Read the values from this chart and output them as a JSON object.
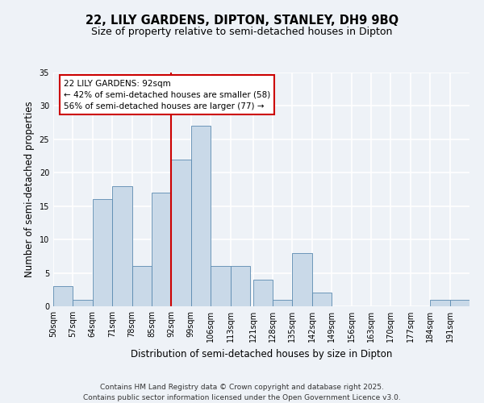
{
  "title_line1": "22, LILY GARDENS, DIPTON, STANLEY, DH9 9BQ",
  "title_line2": "Size of property relative to semi-detached houses in Dipton",
  "xlabel": "Distribution of semi-detached houses by size in Dipton",
  "ylabel": "Number of semi-detached properties",
  "footer": "Contains HM Land Registry data © Crown copyright and database right 2025.\nContains public sector information licensed under the Open Government Licence v3.0.",
  "bin_labels": [
    "50sqm",
    "57sqm",
    "64sqm",
    "71sqm",
    "78sqm",
    "85sqm",
    "92sqm",
    "99sqm",
    "106sqm",
    "113sqm",
    "121sqm",
    "128sqm",
    "135sqm",
    "142sqm",
    "149sqm",
    "156sqm",
    "163sqm",
    "170sqm",
    "177sqm",
    "184sqm",
    "191sqm"
  ],
  "values": [
    3,
    1,
    16,
    18,
    6,
    17,
    22,
    27,
    6,
    6,
    4,
    1,
    8,
    2,
    0,
    0,
    0,
    0,
    0,
    1,
    1
  ],
  "bin_edges": [
    50,
    57,
    64,
    71,
    78,
    85,
    92,
    99,
    106,
    113,
    121,
    128,
    135,
    142,
    149,
    156,
    163,
    170,
    177,
    184,
    191,
    198
  ],
  "highlight_value": 92,
  "bar_color": "#c9d9e8",
  "bar_edge_color": "#5a8ab0",
  "highlight_line_color": "#cc0000",
  "annotation_box_color": "#cc0000",
  "annotation_text": "22 LILY GARDENS: 92sqm\n← 42% of semi-detached houses are smaller (58)\n56% of semi-detached houses are larger (77) →",
  "ylim": [
    0,
    35
  ],
  "yticks": [
    0,
    5,
    10,
    15,
    20,
    25,
    30,
    35
  ],
  "background_color": "#eef2f7",
  "grid_color": "#ffffff",
  "title_fontsize": 10.5,
  "subtitle_fontsize": 9,
  "axis_label_fontsize": 8.5,
  "tick_fontsize": 7,
  "annotation_fontsize": 7.5,
  "footer_fontsize": 6.5
}
